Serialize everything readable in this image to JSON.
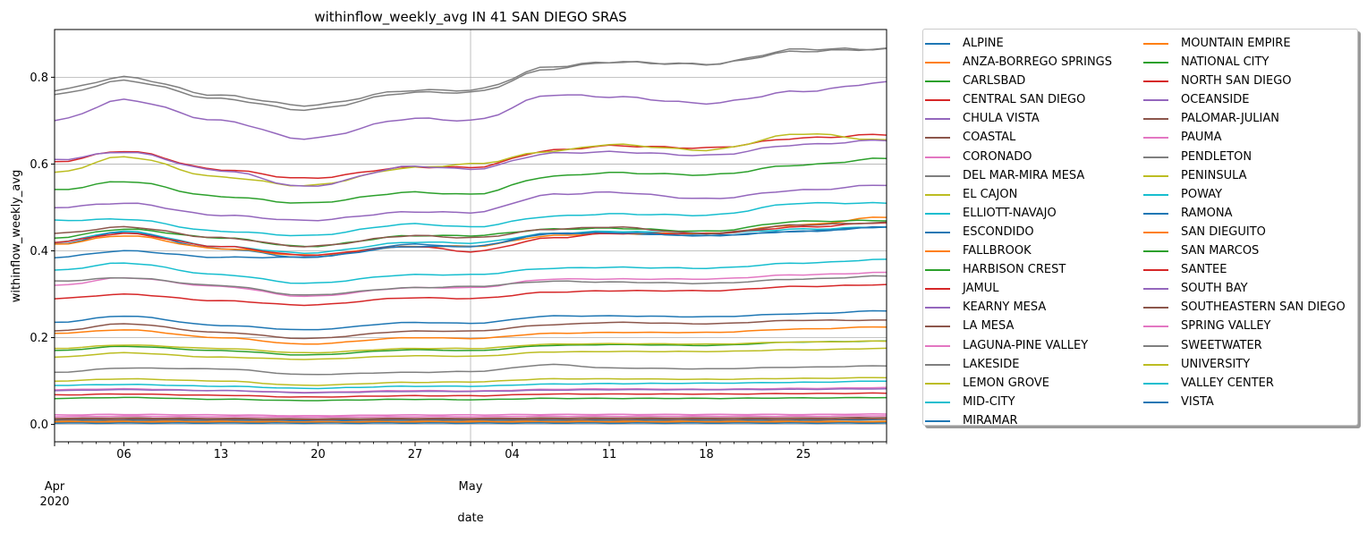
{
  "chart_data": {
    "type": "line",
    "title": "withinflow_weekly_avg IN 41 SAN DIEGO SRAS",
    "xlabel": "date",
    "ylabel": "withinflow_weekly_avg",
    "x_start": "2020-04-01",
    "x_end": "2020-05-31",
    "ylim": [
      -0.04,
      0.91
    ],
    "x_ticks": [
      {
        "date": "2020-04-01",
        "label": "Apr",
        "sublabel": "2020"
      },
      {
        "date": "2020-04-06",
        "label": "06"
      },
      {
        "date": "2020-04-13",
        "label": "13"
      },
      {
        "date": "2020-04-20",
        "label": "20"
      },
      {
        "date": "2020-04-27",
        "label": "27"
      },
      {
        "date": "2020-05-01",
        "label": "May"
      },
      {
        "date": "2020-05-04",
        "label": "04"
      },
      {
        "date": "2020-05-11",
        "label": "11"
      },
      {
        "date": "2020-05-18",
        "label": "18"
      },
      {
        "date": "2020-05-25",
        "label": "25"
      }
    ],
    "y_ticks": [
      0.0,
      0.2,
      0.4,
      0.6,
      0.8
    ],
    "y_tick_labels": [
      "0.0",
      "0.2",
      "0.4",
      "0.6",
      "0.8"
    ],
    "grid": true,
    "legend_placement": "outside-right",
    "anchor_dates": [
      "2020-04-01",
      "2020-04-06",
      "2020-04-13",
      "2020-04-19",
      "2020-04-27",
      "2020-05-01",
      "2020-05-07",
      "2020-05-11",
      "2020-05-18",
      "2020-05-25",
      "2020-05-31"
    ],
    "series": [
      {
        "name": "ALPINE",
        "color": "#1f77b4",
        "values": [
          0.01,
          0.01,
          0.01,
          0.009,
          0.01,
          0.01,
          0.01,
          0.01,
          0.01,
          0.01,
          0.011
        ]
      },
      {
        "name": "ANZA-BORREGO SPRINGS",
        "color": "#ff7f0e",
        "values": [
          0.005,
          0.005,
          0.005,
          0.004,
          0.005,
          0.005,
          0.005,
          0.005,
          0.005,
          0.005,
          0.005
        ]
      },
      {
        "name": "CARLSBAD",
        "color": "#2ca02c",
        "values": [
          0.54,
          0.56,
          0.525,
          0.51,
          0.535,
          0.53,
          0.572,
          0.58,
          0.575,
          0.598,
          0.613
        ]
      },
      {
        "name": "CENTRAL SAN DIEGO",
        "color": "#d62728",
        "values": [
          0.605,
          0.63,
          0.587,
          0.567,
          0.593,
          0.592,
          0.632,
          0.642,
          0.637,
          0.66,
          0.668
        ]
      },
      {
        "name": "CHULA VISTA",
        "color": "#9467bd",
        "values": [
          0.5,
          0.51,
          0.482,
          0.47,
          0.49,
          0.488,
          0.53,
          0.535,
          0.52,
          0.54,
          0.552
        ]
      },
      {
        "name": "COASTAL",
        "color": "#8c564b",
        "values": [
          0.014,
          0.015,
          0.014,
          0.013,
          0.014,
          0.014,
          0.015,
          0.015,
          0.015,
          0.015,
          0.016
        ]
      },
      {
        "name": "CORONADO",
        "color": "#e377c2",
        "values": [
          0.08,
          0.082,
          0.078,
          0.074,
          0.078,
          0.077,
          0.081,
          0.082,
          0.081,
          0.083,
          0.085
        ]
      },
      {
        "name": "DEL MAR-MIRA MESA",
        "color": "#7f7f7f",
        "values": [
          0.76,
          0.792,
          0.75,
          0.725,
          0.765,
          0.765,
          0.82,
          0.835,
          0.83,
          0.86,
          0.865
        ]
      },
      {
        "name": "EL CAJON",
        "color": "#bcbd22",
        "values": [
          0.58,
          0.617,
          0.57,
          0.55,
          0.592,
          0.6,
          0.63,
          0.645,
          0.632,
          0.67,
          0.655
        ]
      },
      {
        "name": "ELLIOTT-NAVAJO",
        "color": "#17becf",
        "values": [
          0.47,
          0.473,
          0.445,
          0.435,
          0.462,
          0.455,
          0.48,
          0.485,
          0.482,
          0.51,
          0.51
        ]
      },
      {
        "name": "ESCONDIDO",
        "color": "#1f77b4",
        "values": [
          0.235,
          0.25,
          0.228,
          0.218,
          0.235,
          0.233,
          0.25,
          0.25,
          0.248,
          0.255,
          0.262
        ]
      },
      {
        "name": "FALLBROOK",
        "color": "#ff7f0e",
        "values": [
          0.21,
          0.218,
          0.2,
          0.185,
          0.2,
          0.198,
          0.21,
          0.212,
          0.212,
          0.22,
          0.225
        ]
      },
      {
        "name": "HARBISON CREST",
        "color": "#2ca02c",
        "values": [
          0.06,
          0.062,
          0.058,
          0.055,
          0.058,
          0.057,
          0.06,
          0.06,
          0.06,
          0.061,
          0.062
        ]
      },
      {
        "name": "JAMUL",
        "color": "#d62728",
        "values": [
          0.29,
          0.3,
          0.285,
          0.275,
          0.292,
          0.29,
          0.305,
          0.308,
          0.308,
          0.318,
          0.322
        ]
      },
      {
        "name": "KEARNY MESA",
        "color": "#9467bd",
        "values": [
          0.7,
          0.748,
          0.7,
          0.658,
          0.705,
          0.7,
          0.76,
          0.755,
          0.74,
          0.768,
          0.788
        ]
      },
      {
        "name": "LA MESA",
        "color": "#8c564b",
        "values": [
          0.215,
          0.232,
          0.212,
          0.198,
          0.215,
          0.215,
          0.23,
          0.235,
          0.232,
          0.24,
          0.24
        ]
      },
      {
        "name": "LAGUNA-PINE VALLEY",
        "color": "#e377c2",
        "values": [
          0.022,
          0.023,
          0.022,
          0.02,
          0.022,
          0.022,
          0.023,
          0.023,
          0.023,
          0.023,
          0.024
        ]
      },
      {
        "name": "LAKESIDE",
        "color": "#7f7f7f",
        "values": [
          0.12,
          0.13,
          0.128,
          0.115,
          0.12,
          0.122,
          0.138,
          0.13,
          0.128,
          0.132,
          0.135
        ]
      },
      {
        "name": "LEMON GROVE",
        "color": "#bcbd22",
        "values": [
          0.1,
          0.105,
          0.1,
          0.09,
          0.097,
          0.098,
          0.105,
          0.105,
          0.104,
          0.106,
          0.108
        ]
      },
      {
        "name": "MID-CITY",
        "color": "#17becf",
        "values": [
          0.42,
          0.445,
          0.41,
          0.395,
          0.42,
          0.418,
          0.44,
          0.445,
          0.44,
          0.45,
          0.455
        ]
      },
      {
        "name": "MIRAMAR",
        "color": "#1f77b4",
        "values": [
          0.003,
          0.003,
          0.003,
          0.003,
          0.003,
          0.003,
          0.003,
          0.003,
          0.003,
          0.003,
          0.003
        ]
      },
      {
        "name": "MOUNTAIN EMPIRE",
        "color": "#ff7f0e",
        "values": [
          0.007,
          0.007,
          0.007,
          0.006,
          0.007,
          0.007,
          0.007,
          0.007,
          0.007,
          0.007,
          0.007
        ]
      },
      {
        "name": "NATIONAL CITY",
        "color": "#2ca02c",
        "values": [
          0.17,
          0.18,
          0.17,
          0.16,
          0.172,
          0.17,
          0.182,
          0.184,
          0.182,
          0.19,
          0.192
        ]
      },
      {
        "name": "NORTH SAN DIEGO",
        "color": "#d62728",
        "values": [
          0.068,
          0.07,
          0.067,
          0.063,
          0.066,
          0.066,
          0.07,
          0.07,
          0.07,
          0.071,
          0.072
        ]
      },
      {
        "name": "OCEANSIDE",
        "color": "#9467bd",
        "values": [
          0.61,
          0.628,
          0.585,
          0.548,
          0.595,
          0.588,
          0.625,
          0.628,
          0.62,
          0.645,
          0.655
        ]
      },
      {
        "name": "PALOMAR-JULIAN",
        "color": "#8c564b",
        "values": [
          0.012,
          0.012,
          0.012,
          0.011,
          0.012,
          0.012,
          0.012,
          0.012,
          0.012,
          0.012,
          0.013
        ]
      },
      {
        "name": "PAUMA",
        "color": "#e377c2",
        "values": [
          0.018,
          0.019,
          0.018,
          0.017,
          0.018,
          0.018,
          0.019,
          0.019,
          0.019,
          0.019,
          0.02
        ]
      },
      {
        "name": "PENDLETON",
        "color": "#7f7f7f",
        "values": [
          0.77,
          0.8,
          0.758,
          0.735,
          0.77,
          0.77,
          0.825,
          0.835,
          0.83,
          0.865,
          0.865
        ]
      },
      {
        "name": "PENINSULA",
        "color": "#bcbd22",
        "values": [
          0.155,
          0.165,
          0.155,
          0.15,
          0.158,
          0.157,
          0.167,
          0.168,
          0.168,
          0.172,
          0.175
        ]
      },
      {
        "name": "POWAY",
        "color": "#17becf",
        "values": [
          0.355,
          0.372,
          0.345,
          0.325,
          0.345,
          0.345,
          0.36,
          0.362,
          0.36,
          0.372,
          0.38
        ]
      },
      {
        "name": "RAMONA",
        "color": "#1f77b4",
        "values": [
          0.415,
          0.443,
          0.405,
          0.385,
          0.415,
          0.41,
          0.44,
          0.44,
          0.435,
          0.445,
          0.455
        ]
      },
      {
        "name": "SAN DIEGUITO",
        "color": "#ff7f0e",
        "values": [
          0.415,
          0.435,
          0.405,
          0.39,
          0.41,
          0.41,
          0.435,
          0.44,
          0.44,
          0.46,
          0.478
        ]
      },
      {
        "name": "SAN MARCOS",
        "color": "#2ca02c",
        "values": [
          0.43,
          0.45,
          0.43,
          0.41,
          0.435,
          0.435,
          0.45,
          0.452,
          0.445,
          0.468,
          0.47
        ]
      },
      {
        "name": "SANTEE",
        "color": "#d62728",
        "values": [
          0.42,
          0.44,
          0.41,
          0.39,
          0.41,
          0.398,
          0.43,
          0.44,
          0.44,
          0.455,
          0.465
        ]
      },
      {
        "name": "SOUTH BAY",
        "color": "#9467bd",
        "values": [
          0.078,
          0.08,
          0.078,
          0.073,
          0.076,
          0.076,
          0.079,
          0.08,
          0.08,
          0.081,
          0.082
        ]
      },
      {
        "name": "SOUTHEASTERN SAN DIEGO",
        "color": "#8c564b",
        "values": [
          0.44,
          0.455,
          0.43,
          0.41,
          0.435,
          0.43,
          0.45,
          0.455,
          0.44,
          0.46,
          0.465
        ]
      },
      {
        "name": "SPRING VALLEY",
        "color": "#e377c2",
        "values": [
          0.32,
          0.338,
          0.318,
          0.295,
          0.315,
          0.315,
          0.335,
          0.335,
          0.335,
          0.345,
          0.35
        ]
      },
      {
        "name": "SWEETWATER",
        "color": "#7f7f7f",
        "values": [
          0.33,
          0.338,
          0.32,
          0.298,
          0.315,
          0.318,
          0.33,
          0.328,
          0.325,
          0.335,
          0.342
        ]
      },
      {
        "name": "UNIVERSITY",
        "color": "#bcbd22",
        "values": [
          0.175,
          0.183,
          0.175,
          0.165,
          0.175,
          0.175,
          0.185,
          0.186,
          0.185,
          0.19,
          0.192
        ]
      },
      {
        "name": "VALLEY CENTER",
        "color": "#17becf",
        "values": [
          0.09,
          0.092,
          0.088,
          0.083,
          0.088,
          0.088,
          0.093,
          0.094,
          0.095,
          0.097,
          0.1
        ]
      },
      {
        "name": "VISTA",
        "color": "#1f77b4",
        "values": [
          0.385,
          0.4,
          0.385,
          0.385,
          0.41,
          0.41,
          0.44,
          0.442,
          0.435,
          0.445,
          0.455
        ]
      }
    ]
  }
}
